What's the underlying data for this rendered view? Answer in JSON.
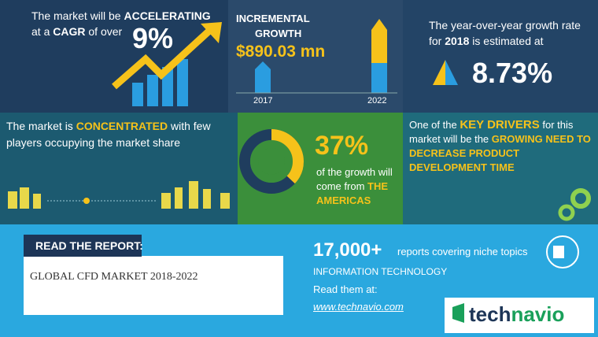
{
  "panel_cagr": {
    "line1": "The market will be ",
    "accelerating": "ACCELERATING",
    "line2": "at a ",
    "cagr": "CAGR",
    "line2b": " of over",
    "value": "9%"
  },
  "panel_growth": {
    "title1": "INCREMENTAL",
    "title2": "GROWTH",
    "value": "$890.03 mn",
    "year_start": "2017",
    "year_end": "2022"
  },
  "panel_yoy": {
    "line1": "The year-over-year growth rate",
    "line2a": "for ",
    "year": "2018",
    "line2b": " is estimated at",
    "value": "8.73%"
  },
  "panel_concentrated": {
    "text1": "The market is ",
    "highlight": "CONCENTRATED",
    "text2": " with few players occupying the market share"
  },
  "panel_region": {
    "donut": {
      "value": 37,
      "label": "37%"
    },
    "text": "of the growth will come from ",
    "region": "THE AMERICAS"
  },
  "panel_drivers": {
    "text1": "One of the ",
    "highlight1": "KEY DRIVERS",
    "text2": " for this market will be the ",
    "highlight2": "GROWING NEED TO DECREASE PRODUCT DEVELOPMENT TIME"
  },
  "footer": {
    "read_label": "READ THE REPORT:",
    "report_title": "GLOBAL CFD MARKET 2018-2022",
    "count": "17,000+",
    "count_text": "reports covering niche topics",
    "category": "INFORMATION TECHNOLOGY",
    "read_at": "Read them at:",
    "url": "www.technavio.com",
    "logo_a": "tech",
    "logo_b": "navio"
  }
}
